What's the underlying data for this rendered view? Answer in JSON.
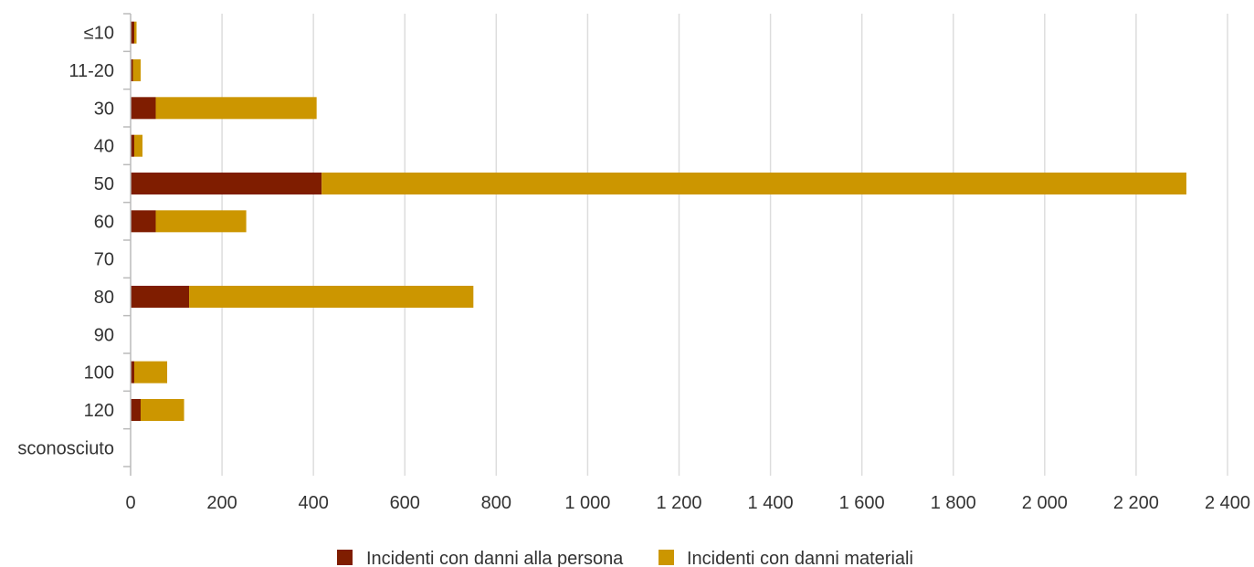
{
  "chart_data": {
    "type": "bar",
    "orientation": "horizontal",
    "stacked": true,
    "categories": [
      "≤10",
      "11-20",
      "30",
      "40",
      "50",
      "60",
      "70",
      "80",
      "90",
      "100",
      "120",
      "sconosciuto"
    ],
    "series": [
      {
        "name": "Incidenti con danni alla persona",
        "color": "#7f1d00",
        "values": [
          8,
          5,
          55,
          8,
          418,
          55,
          0,
          128,
          0,
          8,
          22,
          0
        ]
      },
      {
        "name": "Incidenti con danni materiali",
        "color": "#cc9600",
        "values": [
          5,
          17,
          352,
          18,
          1892,
          198,
          0,
          622,
          0,
          72,
          95,
          0
        ]
      }
    ],
    "xlim": [
      0,
      2400
    ],
    "xticks": [
      0,
      200,
      400,
      600,
      800,
      1000,
      1200,
      1400,
      1600,
      1800,
      2000,
      2200,
      2400
    ],
    "xtick_labels": [
      "0",
      "200",
      "400",
      "600",
      "800",
      "1 000",
      "1 200",
      "1 400",
      "1 600",
      "1 800",
      "2 000",
      "2 200",
      "2 400"
    ],
    "grid": true,
    "legend_position": "bottom",
    "gridline_color": "#dddddd",
    "axis_color": "#bbbbbb"
  }
}
